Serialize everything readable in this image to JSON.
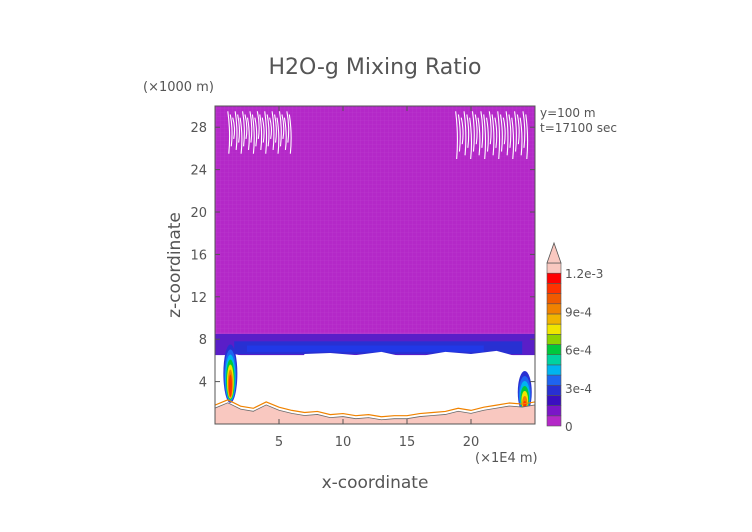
{
  "chart_data": {
    "type": "heatmap",
    "title": "H2O-g Mixing Ratio",
    "xlabel": "x-coordinate",
    "ylabel": "z-coordinate",
    "x_units": "(×1E4 m)",
    "y_units": "(×1000 m)",
    "annotations": [
      "y=100 m",
      "t=17100 sec"
    ],
    "xlim": [
      0,
      25
    ],
    "ylim": [
      0,
      30
    ],
    "x_ticks": [
      5,
      10,
      15,
      20
    ],
    "y_ticks": [
      4,
      8,
      12,
      16,
      20,
      24,
      28
    ],
    "field_summary": {
      "upper_layer": {
        "z_range": [
          8.5,
          30
        ],
        "value": 2e-05,
        "color": "#b428c8"
      },
      "moist_band": {
        "z_range": [
          6.5,
          8.5
        ],
        "value_range": [
          0.0001,
          0.0003
        ],
        "color": "#2830d2"
      },
      "below_band": {
        "z_range": [
          1.5,
          6.5
        ],
        "value": "undefined/white"
      },
      "wave_regions_top": [
        {
          "x_range": [
            1,
            6
          ],
          "z_range": [
            25.5,
            29.5
          ]
        },
        {
          "x_range": [
            18.8,
            24.5
          ],
          "z_range": [
            25,
            29.5
          ]
        }
      ],
      "strong_plumes": [
        {
          "x": 1.2,
          "z_range": [
            2,
            7.5
          ],
          "max_value": 0.0012
        },
        {
          "x": 24.2,
          "z_range": [
            1,
            5
          ],
          "max_value": 0.0007
        }
      ]
    },
    "terrain": [
      [
        0,
        1.5
      ],
      [
        1,
        2.0
      ],
      [
        2,
        1.4
      ],
      [
        3,
        1.2
      ],
      [
        4,
        1.8
      ],
      [
        5,
        1.3
      ],
      [
        6,
        1.0
      ],
      [
        7,
        0.8
      ],
      [
        8,
        0.9
      ],
      [
        9,
        0.6
      ],
      [
        10,
        0.7
      ],
      [
        11,
        0.5
      ],
      [
        12,
        0.6
      ],
      [
        13,
        0.4
      ],
      [
        14,
        0.5
      ],
      [
        15,
        0.5
      ],
      [
        16,
        0.7
      ],
      [
        17,
        0.8
      ],
      [
        18,
        0.9
      ],
      [
        19,
        1.2
      ],
      [
        20,
        1.0
      ],
      [
        21,
        1.3
      ],
      [
        22,
        1.5
      ],
      [
        23,
        1.7
      ],
      [
        24,
        1.6
      ],
      [
        25,
        1.8
      ]
    ],
    "colorbar": {
      "ticks": [
        "0",
        "3e-4",
        "6e-4",
        "9e-4",
        "1.2e-3"
      ],
      "range": [
        0,
        0.0012
      ],
      "colors": [
        "#b428c8",
        "#7a16c8",
        "#3a0fc0",
        "#2830d2",
        "#1e64f0",
        "#00b4f0",
        "#00d2a0",
        "#00c83c",
        "#8cd200",
        "#f0e600",
        "#f0b400",
        "#f08200",
        "#f05a00",
        "#ff3200",
        "#ff0000",
        "#f9c8c0"
      ]
    }
  }
}
